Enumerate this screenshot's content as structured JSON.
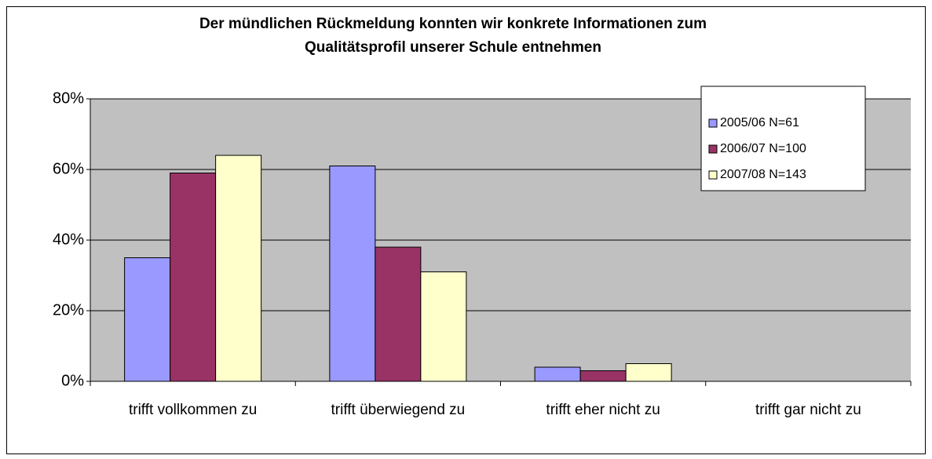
{
  "chart_data": {
    "type": "bar",
    "title": [
      "Der mündlichen Rückmeldung konnten wir konkrete Informationen zum",
      "Qualitätsprofil unserer Schule entnehmen"
    ],
    "categories": [
      "trifft vollkommen zu",
      "trifft überwiegend zu",
      "trifft eher nicht zu",
      "trifft gar nicht zu"
    ],
    "series": [
      {
        "name": "2005/06 N=61",
        "color": "#9999ff",
        "values": [
          35,
          61,
          4,
          0
        ]
      },
      {
        "name": "2006/07 N=100",
        "color": "#993366",
        "values": [
          59,
          38,
          3,
          0
        ]
      },
      {
        "name": "2007/08 N=143",
        "color": "#ffffcc",
        "values": [
          64,
          31,
          5,
          0
        ]
      }
    ],
    "ylim": [
      0,
      80
    ],
    "yticks": [
      {
        "value": 0,
        "label": "0%"
      },
      {
        "value": 20,
        "label": "20%"
      },
      {
        "value": 40,
        "label": "40%"
      },
      {
        "value": 60,
        "label": "60%"
      },
      {
        "value": 80,
        "label": "80%"
      }
    ],
    "grid": true,
    "legend": "top-right"
  }
}
